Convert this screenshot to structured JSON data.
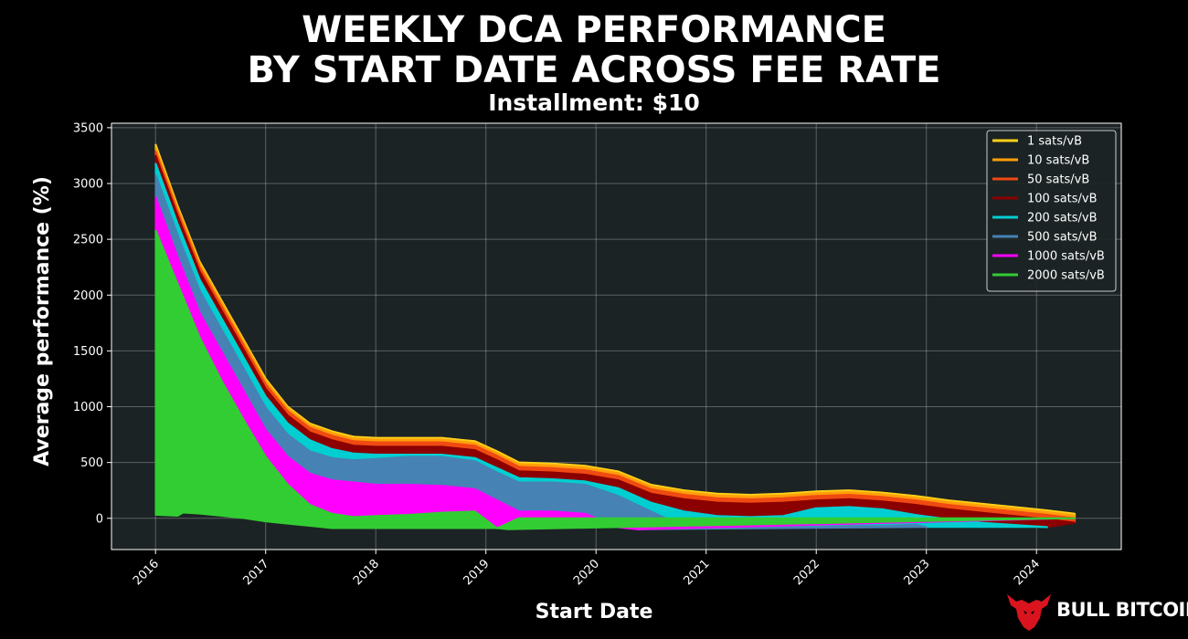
{
  "title_line1": "WEEKLY DCA PERFORMANCE",
  "title_line2": "BY START DATE ACROSS FEE RATE",
  "subtitle": "Installment: $10",
  "brand": "BULL BITCOIN",
  "chart_data": {
    "type": "area",
    "xlabel": "Start Date",
    "ylabel": "Average performance (%)",
    "xlim": [
      2015.6,
      2024.77
    ],
    "ylim": [
      -280,
      3540
    ],
    "x_ticks": [
      "2016",
      "2017",
      "2018",
      "2019",
      "2020",
      "2021",
      "2022",
      "2023",
      "2024"
    ],
    "y_ticks": [
      0,
      500,
      1000,
      1500,
      2000,
      2500,
      3000,
      3500
    ],
    "grid": true,
    "legend_position": "top-right",
    "series": [
      {
        "name": "1 sats/vB",
        "color": "#FFD11A",
        "x": [
          2016.0,
          2016.2,
          2016.4,
          2016.6,
          2016.8,
          2017.0,
          2017.2,
          2017.4,
          2017.6,
          2017.8,
          2018.0,
          2018.3,
          2018.6,
          2018.9,
          2019.1,
          2019.3,
          2019.6,
          2019.9,
          2020.2,
          2020.5,
          2020.8,
          2021.1,
          2021.4,
          2021.7,
          2022.0,
          2022.3,
          2022.6,
          2022.9,
          2023.2,
          2023.5,
          2023.8,
          2024.1,
          2024.35
        ],
        "y": [
          3350,
          2800,
          2300,
          1950,
          1600,
          1250,
          1000,
          850,
          780,
          730,
          720,
          720,
          720,
          690,
          600,
          500,
          490,
          470,
          420,
          300,
          250,
          220,
          210,
          220,
          240,
          250,
          230,
          200,
          160,
          130,
          100,
          70,
          40
        ]
      },
      {
        "name": "10 sats/vB",
        "color": "#FF9F0A",
        "x": [
          2016.0,
          2016.2,
          2016.4,
          2016.6,
          2016.8,
          2017.0,
          2017.2,
          2017.4,
          2017.6,
          2017.8,
          2018.0,
          2018.3,
          2018.6,
          2018.9,
          2019.1,
          2019.3,
          2019.6,
          2019.9,
          2020.2,
          2020.5,
          2020.8,
          2021.1,
          2021.4,
          2021.7,
          2022.0,
          2022.3,
          2022.6,
          2022.9,
          2023.2,
          2023.5,
          2023.8,
          2024.1,
          2024.35
        ],
        "y": [
          3320,
          2780,
          2280,
          1930,
          1580,
          1230,
          985,
          835,
          765,
          715,
          705,
          705,
          705,
          675,
          585,
          485,
          475,
          455,
          405,
          285,
          235,
          205,
          195,
          205,
          225,
          235,
          215,
          185,
          145,
          115,
          85,
          55,
          25
        ]
      },
      {
        "name": "50 sats/vB",
        "color": "#F04A12",
        "x": [
          2016.0,
          2016.2,
          2016.4,
          2016.6,
          2016.8,
          2017.0,
          2017.2,
          2017.4,
          2017.6,
          2017.8,
          2018.0,
          2018.3,
          2018.6,
          2018.9,
          2019.1,
          2019.3,
          2019.6,
          2019.9,
          2020.2,
          2020.5,
          2020.8,
          2021.1,
          2021.4,
          2021.7,
          2022.0,
          2022.3,
          2022.6,
          2022.9,
          2023.2,
          2023.5,
          2023.8,
          2024.1,
          2024.35
        ],
        "y": [
          3290,
          2750,
          2250,
          1900,
          1550,
          1200,
          960,
          810,
          740,
          690,
          680,
          680,
          680,
          650,
          560,
          460,
          450,
          430,
          380,
          260,
          210,
          180,
          170,
          180,
          200,
          210,
          190,
          160,
          120,
          90,
          60,
          30,
          0
        ]
      },
      {
        "name": "100 sats/vB",
        "color": "#8B0000",
        "x": [
          2016.0,
          2016.2,
          2016.4,
          2016.6,
          2016.8,
          2017.0,
          2017.2,
          2017.4,
          2017.6,
          2017.8,
          2018.0,
          2018.3,
          2018.6,
          2018.9,
          2019.1,
          2019.3,
          2019.6,
          2019.9,
          2020.2,
          2020.5,
          2020.8,
          2021.1,
          2021.4,
          2021.7,
          2022.0,
          2022.3,
          2022.6,
          2022.9,
          2023.2,
          2023.5,
          2023.8,
          2024.1,
          2024.35
        ],
        "y": [
          3250,
          2710,
          2210,
          1860,
          1510,
          1160,
          920,
          770,
          700,
          650,
          640,
          640,
          640,
          610,
          520,
          420,
          410,
          390,
          340,
          220,
          170,
          140,
          130,
          140,
          160,
          170,
          150,
          120,
          80,
          50,
          20,
          -10,
          -40
        ]
      },
      {
        "name": "200 sats/vB",
        "color": "#00CED1",
        "x": [
          2016.0,
          2016.2,
          2016.4,
          2016.6,
          2016.8,
          2017.0,
          2017.2,
          2017.4,
          2017.6,
          2017.8,
          2018.0,
          2018.3,
          2018.6,
          2018.9,
          2019.1,
          2019.3,
          2019.6,
          2019.9,
          2020.2,
          2020.5,
          2020.8,
          2021.1,
          2021.4,
          2021.7,
          2022.0,
          2022.3,
          2022.6,
          2022.9,
          2023.2,
          2023.5,
          2023.8,
          2024.1
        ],
        "y": [
          3180,
          2640,
          2140,
          1790,
          1440,
          1090,
          850,
          700,
          620,
          580,
          570,
          570,
          570,
          540,
          450,
          360,
          350,
          330,
          270,
          140,
          60,
          20,
          10,
          20,
          90,
          100,
          80,
          30,
          -10,
          -40,
          -60,
          -80
        ]
      },
      {
        "name": "500 sats/vB",
        "color": "#4682B4",
        "x": [
          2016.0,
          2016.2,
          2016.4,
          2016.6,
          2016.8,
          2017.0,
          2017.2,
          2017.4,
          2017.6,
          2017.8,
          2018.0,
          2018.3,
          2018.6,
          2018.9,
          2019.1,
          2019.3,
          2019.6,
          2019.9,
          2020.2,
          2020.5,
          2020.8,
          2021.1,
          2021.4,
          2021.7,
          2022.0,
          2022.3,
          2022.6,
          2022.9,
          2023.0
        ],
        "y": [
          3080,
          2540,
          2040,
          1690,
          1340,
          990,
          750,
          600,
          540,
          520,
          530,
          550,
          550,
          510,
          410,
          320,
          320,
          300,
          200,
          60,
          -80,
          -80,
          -80,
          -80,
          -80,
          -70,
          -70,
          -60,
          -80
        ]
      },
      {
        "name": "1000 sats/vB",
        "color": "#FF00FF",
        "x": [
          2016.0,
          2016.2,
          2016.4,
          2016.6,
          2016.8,
          2017.0,
          2017.2,
          2017.4,
          2017.6,
          2017.8,
          2018.0,
          2018.3,
          2018.6,
          2018.9,
          2019.1,
          2019.3,
          2019.6,
          2019.9,
          2020.2,
          2020.4
        ],
        "y": [
          2880,
          2340,
          1840,
          1490,
          1140,
          790,
          550,
          400,
          340,
          320,
          300,
          300,
          290,
          260,
          160,
          60,
          60,
          40,
          -80,
          -100
        ]
      },
      {
        "name": "2000 sats/vB",
        "color": "#32CD32",
        "x": [
          2016.0,
          2016.2,
          2016.4,
          2016.6,
          2016.8,
          2017.0,
          2017.2,
          2017.4,
          2017.6,
          2017.8,
          2018.0,
          2018.3,
          2018.6,
          2018.9,
          2019.1,
          2019.3,
          2019.6,
          2019.9,
          2020.2,
          2020.5,
          2020.8,
          2021.1,
          2021.4,
          2021.7,
          2022.0,
          2022.3,
          2022.6,
          2022.9,
          2023.2,
          2023.5,
          2023.8,
          2024.1,
          2024.35
        ],
        "y": [
          2580,
          2100,
          1620,
          1230,
          880,
          550,
          300,
          120,
          40,
          10,
          20,
          30,
          50,
          60,
          -90,
          0,
          0,
          0,
          0,
          0,
          0,
          0,
          0,
          0,
          0,
          0,
          0,
          0,
          0,
          0,
          0,
          0,
          0
        ]
      }
    ],
    "lower_bounds": [
      {
        "name": "2000 sats/vB",
        "x": [
          2016.0,
          2016.2,
          2016.25,
          2016.4,
          2016.6,
          2016.8,
          2017.0,
          2017.2,
          2017.4,
          2017.6,
          2017.8,
          2018.0,
          2018.3,
          2018.6,
          2018.9,
          2019.1,
          2019.2
        ],
        "y": [
          30,
          20,
          50,
          40,
          20,
          0,
          -30,
          -50,
          -70,
          -90,
          -90,
          -90,
          -90,
          -90,
          -90,
          -90,
          -100
        ]
      }
    ]
  }
}
